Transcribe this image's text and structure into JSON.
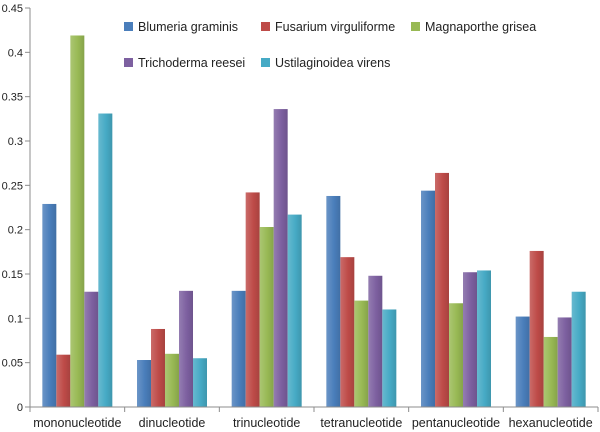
{
  "chart_data": {
    "type": "bar",
    "title": "",
    "xlabel": "",
    "ylabel": "",
    "ylim": [
      0,
      0.45
    ],
    "yticks": [
      0,
      0.05,
      0.1,
      0.15,
      0.2,
      0.25,
      0.3,
      0.35,
      0.4,
      0.45
    ],
    "ytick_labels": [
      "0",
      "0.05",
      "0.1",
      "0.15",
      "0.2",
      "0.25",
      "0.3",
      "0.35",
      "0.4",
      "0.45"
    ],
    "grid": false,
    "legend_position": "top",
    "categories": [
      "mononucleotide",
      "dinucleotide",
      "trinucleotide",
      "tetranucleotide",
      "pentanucleotide",
      "hexanucleotide"
    ],
    "series": [
      {
        "name": "Blumeria graminis",
        "color": "#4a7ebb",
        "values": [
          0.229,
          0.053,
          0.131,
          0.238,
          0.244,
          0.102
        ]
      },
      {
        "name": "Fusarium virguliforme",
        "color": "#be4b48",
        "values": [
          0.059,
          0.088,
          0.242,
          0.169,
          0.264,
          0.176
        ]
      },
      {
        "name": "Magnaporthe grisea",
        "color": "#98b954",
        "values": [
          0.419,
          0.06,
          0.203,
          0.12,
          0.117,
          0.079
        ]
      },
      {
        "name": "Trichoderma reesei",
        "color": "#7d60a0",
        "values": [
          0.13,
          0.131,
          0.336,
          0.148,
          0.152,
          0.101
        ]
      },
      {
        "name": "Ustilaginoidea virens",
        "color": "#46aac5",
        "values": [
          0.331,
          0.055,
          0.217,
          0.11,
          0.154,
          0.13
        ]
      }
    ]
  }
}
